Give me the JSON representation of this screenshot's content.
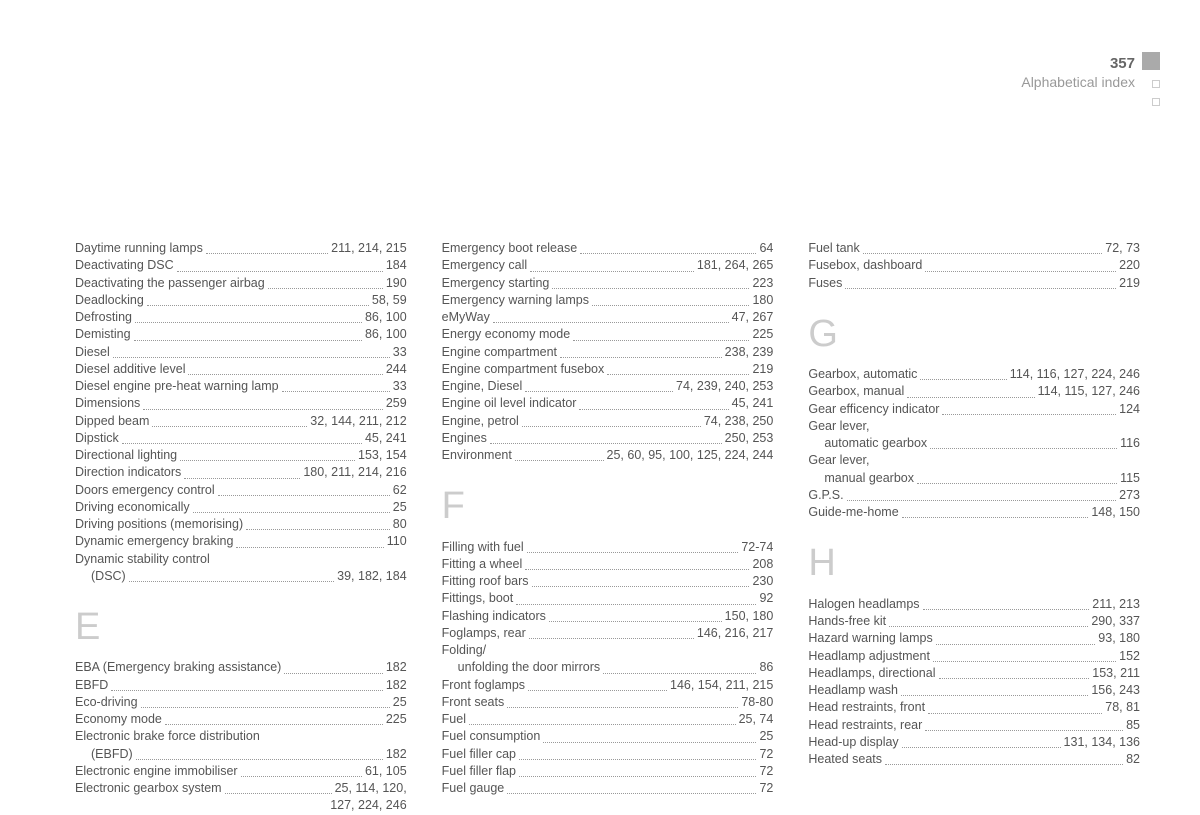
{
  "header": {
    "page_num": "357",
    "title": "Alphabetical index"
  },
  "letters": {
    "E": "E",
    "F": "F",
    "G": "G",
    "H": "H"
  },
  "col1a": [
    {
      "label": "Daytime running lamps",
      "pages": "211, 214, 215"
    },
    {
      "label": "Deactivating DSC",
      "pages": "184"
    },
    {
      "label": "Deactivating the passenger airbag",
      "pages": "190"
    },
    {
      "label": "Deadlocking",
      "pages": "58, 59"
    },
    {
      "label": "Defrosting",
      "pages": "86, 100"
    },
    {
      "label": "Demisting",
      "pages": "86, 100"
    },
    {
      "label": "Diesel",
      "pages": "33"
    },
    {
      "label": "Diesel additive level",
      "pages": "244"
    },
    {
      "label": "Diesel engine pre-heat warning lamp",
      "pages": "33"
    },
    {
      "label": "Dimensions",
      "pages": "259"
    },
    {
      "label": "Dipped beam",
      "pages": "32, 144, 211, 212"
    },
    {
      "label": "Dipstick",
      "pages": "45, 241"
    },
    {
      "label": "Directional lighting",
      "pages": "153, 154"
    },
    {
      "label": "Direction indicators",
      "pages": "180, 211, 214, 216"
    },
    {
      "label": "Doors emergency control",
      "pages": "62"
    },
    {
      "label": "Driving economically",
      "pages": "25"
    },
    {
      "label": "Driving positions (memorising)",
      "pages": "80"
    },
    {
      "label": "Dynamic emergency braking",
      "pages": "110"
    },
    {
      "label": "Dynamic stability control",
      "pages": ""
    },
    {
      "label": "(DSC)",
      "pages": "39, 182, 184",
      "indent": true
    }
  ],
  "col1b": [
    {
      "label": "EBA (Emergency braking assistance)",
      "pages": "182"
    },
    {
      "label": "EBFD",
      "pages": "182"
    },
    {
      "label": "Eco-driving",
      "pages": "25"
    },
    {
      "label": "Economy mode",
      "pages": "225"
    },
    {
      "label": "Electronic brake force distribution",
      "pages": ""
    },
    {
      "label": "(EBFD)",
      "pages": "182",
      "indent": true
    },
    {
      "label": "Electronic engine immobiliser",
      "pages": "61, 105"
    },
    {
      "label": "Electronic gearbox system",
      "pages": "25, 114, 120,"
    }
  ],
  "col1b_cont": "127, 224, 246",
  "col2a": [
    {
      "label": "Emergency boot release",
      "pages": "64"
    },
    {
      "label": "Emergency call",
      "pages": "181, 264, 265"
    },
    {
      "label": "Emergency starting",
      "pages": "223"
    },
    {
      "label": "Emergency warning lamps",
      "pages": "180"
    },
    {
      "label": "eMyWay",
      "pages": "47, 267"
    },
    {
      "label": "Energy economy mode",
      "pages": "225"
    },
    {
      "label": "Engine compartment",
      "pages": "238, 239"
    },
    {
      "label": "Engine compartment fusebox",
      "pages": "219"
    },
    {
      "label": "Engine, Diesel",
      "pages": "74, 239, 240, 253"
    },
    {
      "label": "Engine oil level indicator",
      "pages": "45, 241"
    },
    {
      "label": "Engine, petrol",
      "pages": "74, 238, 250"
    },
    {
      "label": "Engines",
      "pages": "250, 253"
    },
    {
      "label": "Environment",
      "pages": "25, 60, 95, 100, 125, 224, 244"
    }
  ],
  "col2b": [
    {
      "label": "Filling with fuel",
      "pages": "72-74"
    },
    {
      "label": "Fitting a wheel",
      "pages": "208"
    },
    {
      "label": "Fitting roof bars",
      "pages": "230"
    },
    {
      "label": "Fittings, boot",
      "pages": "92"
    },
    {
      "label": "Flashing indicators",
      "pages": "150, 180"
    },
    {
      "label": "Foglamps, rear",
      "pages": "146, 216, 217"
    },
    {
      "label": "Folding/",
      "pages": ""
    },
    {
      "label": "unfolding the door mirrors",
      "pages": "86",
      "indent": true
    },
    {
      "label": "Front foglamps",
      "pages": "146, 154, 211, 215"
    },
    {
      "label": "Front seats",
      "pages": "78-80"
    },
    {
      "label": "Fuel",
      "pages": "25, 74"
    },
    {
      "label": "Fuel consumption",
      "pages": "25"
    },
    {
      "label": "Fuel filler cap",
      "pages": "72"
    },
    {
      "label": "Fuel filler flap",
      "pages": "72"
    },
    {
      "label": "Fuel gauge",
      "pages": "72"
    }
  ],
  "col3a": [
    {
      "label": "Fuel tank",
      "pages": "72, 73"
    },
    {
      "label": "Fusebox, dashboard",
      "pages": "220"
    },
    {
      "label": "Fuses",
      "pages": "219"
    }
  ],
  "col3b": [
    {
      "label": "Gearbox, automatic",
      "pages": "114, 116, 127, 224, 246"
    },
    {
      "label": "Gearbox, manual",
      "pages": "114, 115, 127, 246"
    },
    {
      "label": "Gear efficency indicator",
      "pages": "124"
    },
    {
      "label": "Gear lever,",
      "pages": ""
    },
    {
      "label": "automatic gearbox",
      "pages": "116",
      "indent": true
    },
    {
      "label": "Gear lever,",
      "pages": ""
    },
    {
      "label": "manual gearbox",
      "pages": "115",
      "indent": true
    },
    {
      "label": "G.P.S.",
      "pages": "273"
    },
    {
      "label": "Guide-me-home",
      "pages": "148, 150"
    }
  ],
  "col3c": [
    {
      "label": "Halogen headlamps",
      "pages": "211, 213"
    },
    {
      "label": "Hands-free kit",
      "pages": "290, 337"
    },
    {
      "label": "Hazard warning lamps",
      "pages": "93, 180"
    },
    {
      "label": "Headlamp adjustment",
      "pages": "152"
    },
    {
      "label": "Headlamps, directional",
      "pages": "153, 211"
    },
    {
      "label": "Headlamp wash",
      "pages": "156, 243"
    },
    {
      "label": "Head restraints, front",
      "pages": "78, 81"
    },
    {
      "label": "Head restraints, rear",
      "pages": "85"
    },
    {
      "label": "Head-up display",
      "pages": "131, 134, 136"
    },
    {
      "label": "Heated seats",
      "pages": "82"
    }
  ]
}
